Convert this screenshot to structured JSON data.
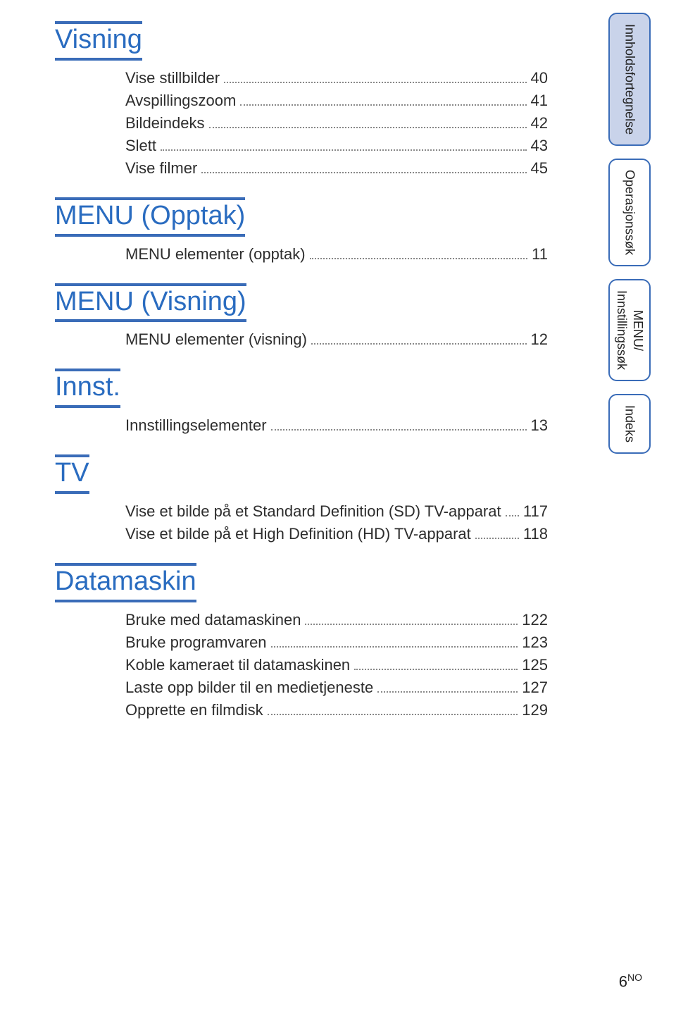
{
  "sections": [
    {
      "heading": "Visning",
      "items": [
        {
          "label": "Vise stillbilder",
          "page": "40"
        },
        {
          "label": "Avspillingszoom",
          "page": "41"
        },
        {
          "label": "Bildeindeks",
          "page": "42"
        },
        {
          "label": "Slett",
          "page": "43"
        },
        {
          "label": "Vise filmer",
          "page": "45"
        }
      ]
    },
    {
      "heading": "MENU (Opptak)",
      "items": [
        {
          "label": "MENU elementer (opptak)",
          "page": "11"
        }
      ]
    },
    {
      "heading": "MENU (Visning)",
      "items": [
        {
          "label": "MENU elementer (visning)",
          "page": "12"
        }
      ]
    },
    {
      "heading": "Innst.",
      "items": [
        {
          "label": "Innstillingselementer",
          "page": "13"
        }
      ]
    },
    {
      "heading": "TV",
      "items": [
        {
          "label": "Vise et bilde på et Standard Definition (SD) TV-apparat",
          "page": "117"
        },
        {
          "label": "Vise et bilde på et High Definition (HD) TV-apparat",
          "page": "118"
        }
      ]
    },
    {
      "heading": "Datamaskin",
      "items": [
        {
          "label": "Bruke med datamaskinen",
          "page": "122"
        },
        {
          "label": "Bruke programvaren",
          "page": "123"
        },
        {
          "label": "Koble kameraet til datamaskinen",
          "page": "125"
        },
        {
          "label": "Laste opp bilder til en medietjeneste",
          "page": "127"
        },
        {
          "label": "Opprette en filmdisk",
          "page": "129"
        }
      ]
    }
  ],
  "tabs": {
    "t1": "Innholdsfortegnelse",
    "t2": "Operasjonssøk",
    "t3a": "Innstillingssøk",
    "t3b": "MENU/",
    "t4": "Indeks"
  },
  "footer": {
    "page": "6",
    "sup": "NO"
  },
  "colors": {
    "heading": "#2a6cc0",
    "rule": "#3a6cb8",
    "tab_fill": "#c9d3ea",
    "text": "#2d2d2d"
  }
}
